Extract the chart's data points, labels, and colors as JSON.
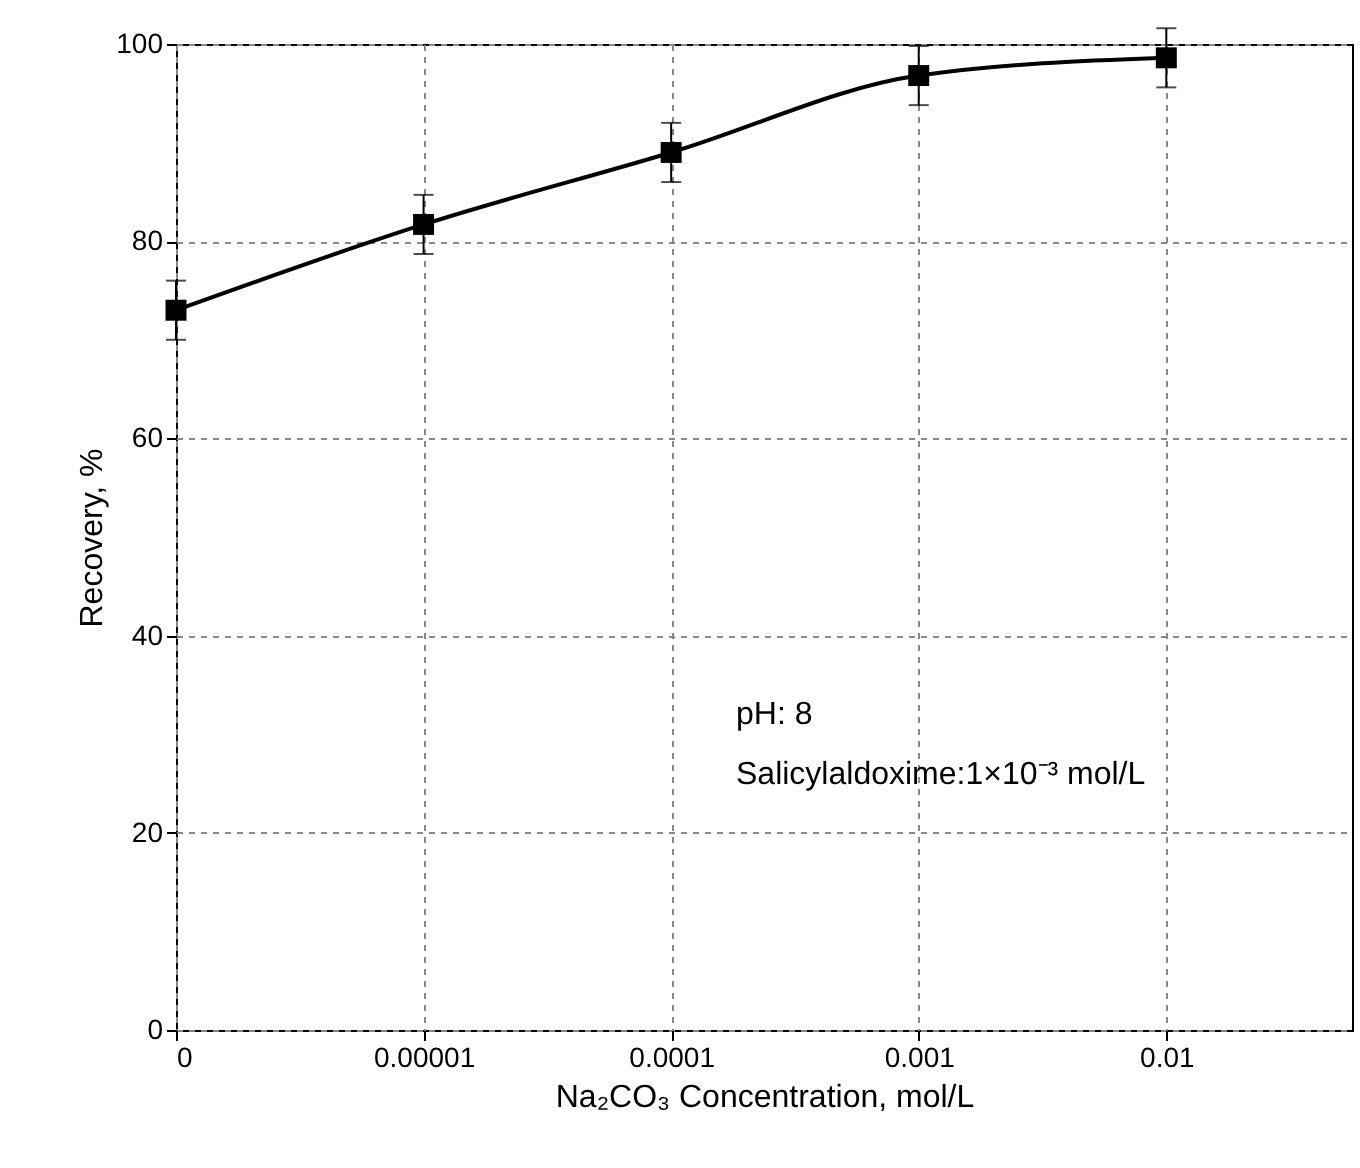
{
  "chart_data": {
    "type": "line",
    "xlabel": "Na₂CO₃ Concentration, mol/L",
    "ylabel": "Recovery, %",
    "categories": [
      "0",
      "0.00001",
      "0.0001",
      "0.001",
      "0.01"
    ],
    "series": [
      {
        "color": "#000000",
        "values": [
          73.0,
          81.7,
          89.0,
          96.8,
          98.6
        ],
        "errors": [
          3,
          3,
          3,
          3,
          3
        ]
      }
    ],
    "ylim": [
      0,
      100
    ],
    "yticks": [
      0,
      20,
      40,
      60,
      80,
      100
    ],
    "grid": true,
    "marker": "square",
    "line_style": "solid",
    "annotations": [
      "pH: 8",
      "Salicylaldoxime:1×10⁻³ mol/L"
    ]
  }
}
